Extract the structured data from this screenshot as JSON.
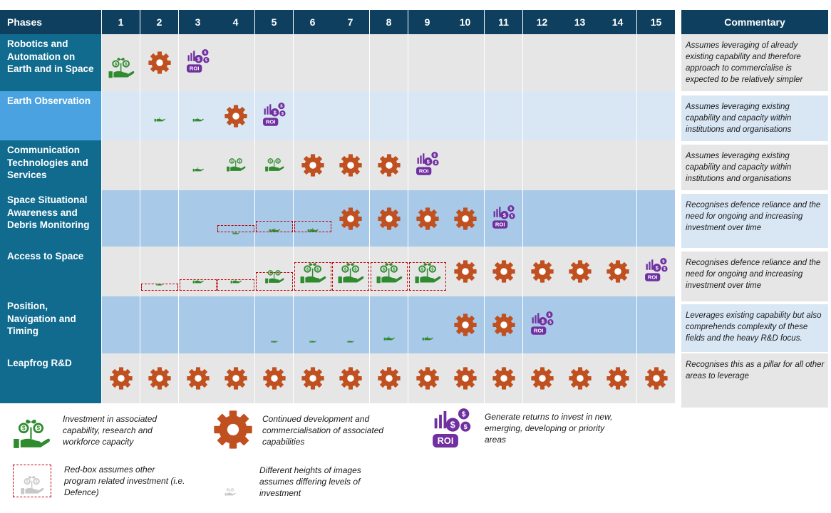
{
  "header": {
    "phases_label": "Phases",
    "commentary_label": "Commentary",
    "phase_numbers": [
      "1",
      "2",
      "3",
      "4",
      "5",
      "6",
      "7",
      "8",
      "9",
      "10",
      "11",
      "12",
      "13",
      "14",
      "15"
    ]
  },
  "colors": {
    "header": "#0e3f5e",
    "label_dark": "#106b8f",
    "label_light": "#4aa3e0",
    "row_gray": "#e6e6e6",
    "row_blue": "#a9c9e8",
    "row_lightblue": "#d9e7f5",
    "comment_gray": "#e6e6e6",
    "comment_light": "#d9e7f5",
    "gear": "#c0501f",
    "hand": "#2e8b2e",
    "roi": "#7030a0",
    "redbox": "#c00000"
  },
  "rows": [
    {
      "label": "Robotics and Automation on Earth and in Space",
      "commentary": "Assumes leveraging of already existing capability and therefore approach to commercialise is expected to be relatively simpler",
      "cells": [
        {
          "phase": 1,
          "type": "invest",
          "level": 3
        },
        {
          "phase": 2,
          "type": "gear"
        },
        {
          "phase": 3,
          "type": "roi"
        }
      ]
    },
    {
      "label": "Earth Observation",
      "commentary": "Assumes leveraging existing capability and capacity within institutions and organisations",
      "cells": [
        {
          "phase": 2,
          "type": "invest",
          "level": 1
        },
        {
          "phase": 3,
          "type": "invest",
          "level": 1
        },
        {
          "phase": 4,
          "type": "gear"
        },
        {
          "phase": 5,
          "type": "roi"
        }
      ]
    },
    {
      "label": "Communication Technologies and Services",
      "commentary": "Assumes leveraging existing capability and capacity within institutions and organisations",
      "cells": [
        {
          "phase": 3,
          "type": "invest",
          "level": 1
        },
        {
          "phase": 4,
          "type": "invest",
          "level": 2
        },
        {
          "phase": 5,
          "type": "invest",
          "level": 2
        },
        {
          "phase": 6,
          "type": "gear"
        },
        {
          "phase": 7,
          "type": "gear"
        },
        {
          "phase": 8,
          "type": "gear"
        },
        {
          "phase": 9,
          "type": "roi"
        }
      ]
    },
    {
      "label": "Space Situational Awareness and Debris Monitoring",
      "commentary": "Recognises defence reliance and the need for ongoing and increasing investment over time",
      "cells": [
        {
          "phase": 4,
          "type": "invest",
          "level": 0,
          "redbox": true
        },
        {
          "phase": 5,
          "type": "invest",
          "level": 1,
          "redbox": true
        },
        {
          "phase": 6,
          "type": "invest",
          "level": 1,
          "redbox": true
        },
        {
          "phase": 7,
          "type": "gear"
        },
        {
          "phase": 8,
          "type": "gear"
        },
        {
          "phase": 9,
          "type": "gear"
        },
        {
          "phase": 10,
          "type": "gear"
        },
        {
          "phase": 11,
          "type": "roi"
        }
      ]
    },
    {
      "label": "Access to Space",
      "commentary": "Recognises defence reliance and the need for ongoing and increasing investment over time",
      "cells": [
        {
          "phase": 2,
          "type": "invest",
          "level": 0,
          "redbox": true
        },
        {
          "phase": 3,
          "type": "invest",
          "level": 1,
          "redbox": true
        },
        {
          "phase": 4,
          "type": "invest",
          "level": 1,
          "redbox": true
        },
        {
          "phase": 5,
          "type": "invest",
          "level": 2,
          "redbox": true
        },
        {
          "phase": 6,
          "type": "invest",
          "level": 3,
          "redbox": true
        },
        {
          "phase": 7,
          "type": "invest",
          "level": 3,
          "redbox": true
        },
        {
          "phase": 8,
          "type": "invest",
          "level": 3,
          "redbox": true
        },
        {
          "phase": 9,
          "type": "invest",
          "level": 3,
          "redbox": true
        },
        {
          "phase": 10,
          "type": "gear"
        },
        {
          "phase": 11,
          "type": "gear"
        },
        {
          "phase": 12,
          "type": "gear"
        },
        {
          "phase": 13,
          "type": "gear"
        },
        {
          "phase": 14,
          "type": "gear"
        },
        {
          "phase": 15,
          "type": "roi"
        }
      ]
    },
    {
      "label": "Position, Navigation and Timing",
      "commentary": "Leverages existing capability but also comprehends complexity of these fields and the heavy R&D focus.",
      "cells": [
        {
          "phase": 5,
          "type": "invest",
          "level": 0
        },
        {
          "phase": 6,
          "type": "invest",
          "level": 0
        },
        {
          "phase": 7,
          "type": "invest",
          "level": 0
        },
        {
          "phase": 8,
          "type": "invest",
          "level": 1
        },
        {
          "phase": 9,
          "type": "invest",
          "level": 1
        },
        {
          "phase": 10,
          "type": "gear"
        },
        {
          "phase": 11,
          "type": "gear"
        },
        {
          "phase": 12,
          "type": "roi"
        }
      ]
    },
    {
      "label": "Leapfrog R&D",
      "commentary": "Recognises this as a pillar for all other areas to leverage",
      "cells": [
        {
          "phase": 1,
          "type": "gear"
        },
        {
          "phase": 2,
          "type": "gear"
        },
        {
          "phase": 3,
          "type": "gear"
        },
        {
          "phase": 4,
          "type": "gear"
        },
        {
          "phase": 5,
          "type": "gear"
        },
        {
          "phase": 6,
          "type": "gear"
        },
        {
          "phase": 7,
          "type": "gear"
        },
        {
          "phase": 8,
          "type": "gear"
        },
        {
          "phase": 9,
          "type": "gear"
        },
        {
          "phase": 10,
          "type": "gear"
        },
        {
          "phase": 11,
          "type": "gear"
        },
        {
          "phase": 12,
          "type": "gear"
        },
        {
          "phase": 13,
          "type": "gear"
        },
        {
          "phase": 14,
          "type": "gear"
        },
        {
          "phase": 15,
          "type": "gear"
        }
      ]
    }
  ],
  "legend": {
    "invest": "Investment in associated capability, research and workforce capacity",
    "gear": "Continued development and commercialisation of associated capabilities",
    "roi": "Generate returns to invest in new, emerging, developing or priority areas",
    "redbox": "Red-box assumes other program related investment (i.e. Defence)",
    "heights": "Different heights of images assumes differing levels of investment",
    "roi_badge": "ROI"
  }
}
